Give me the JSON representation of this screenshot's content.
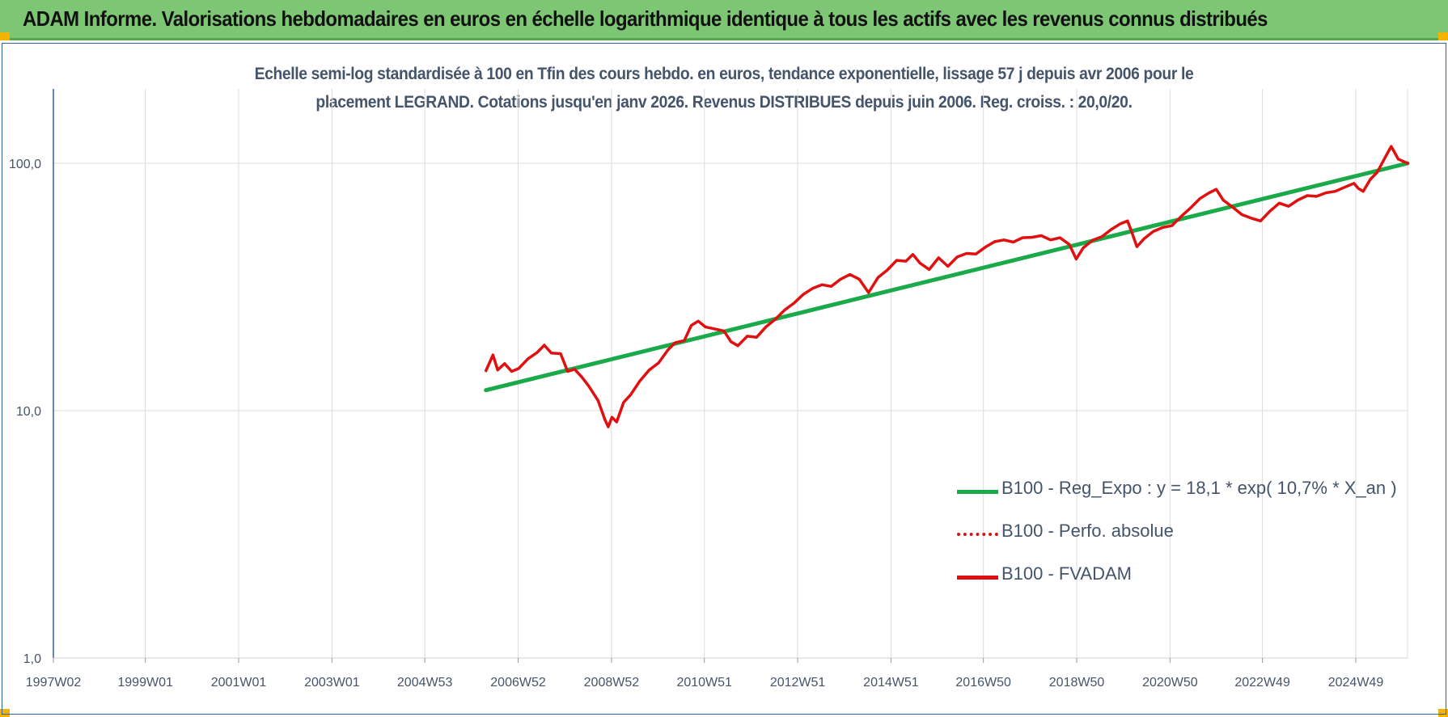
{
  "banner": {
    "title": "ADAM Informe. Valorisations hebdomadaires en euros en échelle logarithmique identique à tous les actifs avec les revenus connus distribués"
  },
  "chart_data": {
    "type": "line",
    "title_lines": [
      "Echelle semi-log standardisée à 100 en Tfin des cours hebdo. en euros, tendance exponentielle, lissage 57 j depuis avr 2006 pour le",
      "placement LEGRAND. Cotations jusqu'en janv 2026. Revenus DISTRIBUES depuis juin 2006. Reg. croiss. : 20,0/20."
    ],
    "y_scale": "log",
    "ylim": [
      1,
      200
    ],
    "y_ticks": [
      {
        "value": 1,
        "label": "1,0"
      },
      {
        "value": 10,
        "label": "10,0"
      },
      {
        "value": 100,
        "label": "100,0"
      }
    ],
    "xlim": [
      1997.03,
      2026.05
    ],
    "x_ticks": [
      {
        "value": 1997.03,
        "label": "1997W02"
      },
      {
        "value": 1999.0,
        "label": "1999W01"
      },
      {
        "value": 2001.0,
        "label": "2001W01"
      },
      {
        "value": 2003.0,
        "label": "2003W01"
      },
      {
        "value": 2004.99,
        "label": "2004W53"
      },
      {
        "value": 2006.99,
        "label": "2006W52"
      },
      {
        "value": 2008.99,
        "label": "2008W52"
      },
      {
        "value": 2010.98,
        "label": "2010W51"
      },
      {
        "value": 2012.98,
        "label": "2012W51"
      },
      {
        "value": 2014.98,
        "label": "2014W51"
      },
      {
        "value": 2016.96,
        "label": "2016W50"
      },
      {
        "value": 2018.96,
        "label": "2018W50"
      },
      {
        "value": 2020.96,
        "label": "2020W50"
      },
      {
        "value": 2022.94,
        "label": "2022W49"
      },
      {
        "value": 2024.94,
        "label": "2024W49"
      }
    ],
    "grid": true,
    "legend_position": "bottom-right",
    "series": [
      {
        "name": "B100 - Reg_Expo : y = 18,1 * exp( 10,7% *  X_an )",
        "color": "#1aaa4a",
        "style": "solid",
        "x": [
          2006.3,
          2026.05
        ],
        "y": [
          12.1,
          100
        ]
      },
      {
        "name": "B100 - Perfo. absolue",
        "color": "#e01010",
        "style": "dotted",
        "x": [],
        "y": []
      },
      {
        "name": "B100 - FVADAM",
        "color": "#e01010",
        "style": "solid",
        "x": [
          2006.3,
          2006.45,
          2006.55,
          2006.7,
          2006.85,
          2007.0,
          2007.2,
          2007.4,
          2007.55,
          2007.7,
          2007.9,
          2008.05,
          2008.2,
          2008.35,
          2008.5,
          2008.7,
          2008.85,
          2008.92,
          2009.0,
          2009.1,
          2009.25,
          2009.4,
          2009.6,
          2009.8,
          2010.0,
          2010.2,
          2010.35,
          2010.55,
          2010.7,
          2010.85,
          2011.0,
          2011.2,
          2011.4,
          2011.55,
          2011.7,
          2011.9,
          2012.1,
          2012.3,
          2012.5,
          2012.7,
          2012.9,
          2013.1,
          2013.3,
          2013.5,
          2013.7,
          2013.9,
          2014.1,
          2014.3,
          2014.5,
          2014.7,
          2014.9,
          2015.1,
          2015.3,
          2015.45,
          2015.6,
          2015.8,
          2016.0,
          2016.2,
          2016.4,
          2016.6,
          2016.8,
          2017.0,
          2017.2,
          2017.4,
          2017.6,
          2017.8,
          2018.0,
          2018.2,
          2018.4,
          2018.6,
          2018.8,
          2018.95,
          2019.1,
          2019.3,
          2019.5,
          2019.7,
          2019.9,
          2020.05,
          2020.15,
          2020.25,
          2020.4,
          2020.6,
          2020.8,
          2021.0,
          2021.2,
          2021.4,
          2021.6,
          2021.8,
          2021.95,
          2022.1,
          2022.3,
          2022.5,
          2022.7,
          2022.9,
          2023.1,
          2023.3,
          2023.5,
          2023.7,
          2023.9,
          2024.1,
          2024.3,
          2024.5,
          2024.7,
          2024.9,
          2025.0,
          2025.1,
          2025.25,
          2025.4,
          2025.55,
          2025.7,
          2025.85,
          2026.05
        ],
        "y": [
          14.5,
          16.8,
          14.6,
          15.5,
          14.4,
          14.8,
          16.2,
          17.2,
          18.4,
          17.1,
          17.0,
          14.4,
          14.7,
          13.7,
          12.6,
          11.0,
          9.2,
          8.6,
          9.4,
          9.0,
          10.8,
          11.6,
          13.2,
          14.6,
          15.6,
          17.6,
          18.8,
          19.2,
          22.1,
          23.0,
          21.8,
          21.4,
          21.0,
          19.0,
          18.3,
          20.0,
          19.8,
          21.8,
          23.4,
          25.5,
          27.2,
          29.5,
          31.2,
          32.3,
          31.8,
          34.0,
          35.5,
          34.0,
          30.0,
          34.5,
          37.0,
          40.5,
          40.2,
          42.8,
          39.5,
          37.2,
          41.5,
          38.3,
          41.8,
          43.2,
          43.0,
          45.8,
          48.2,
          49.0,
          48.0,
          50.0,
          50.2,
          51.0,
          49.0,
          50.0,
          47.0,
          41.0,
          45.5,
          48.8,
          50.5,
          54.0,
          57.0,
          58.5,
          52.0,
          46.0,
          49.5,
          53.0,
          55.0,
          56.0,
          61.0,
          66.0,
          72.0,
          76.0,
          78.5,
          71.0,
          66.5,
          62.0,
          60.0,
          58.5,
          64.0,
          69.0,
          67.0,
          71.0,
          74.0,
          73.5,
          76.0,
          77.0,
          80.0,
          83.0,
          79.0,
          77.0,
          86.0,
          92.0,
          104.0,
          117.0,
          104.0,
          100.0
        ]
      }
    ]
  }
}
